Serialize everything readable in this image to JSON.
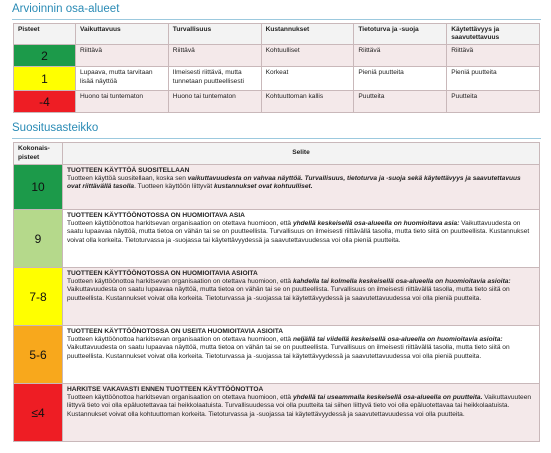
{
  "sections": [
    {
      "heading": "Arvioinnin osa-alueet",
      "table": {
        "header": [
          "Pisteet",
          "Vaikuttavuus",
          "Turvallisuus",
          "Kustannukset",
          "Tietoturva ja -suoja",
          "Käytettävyys ja saavutettavuus"
        ],
        "rows": [
          {
            "score": "2",
            "color": "#1c9a4a",
            "cells": [
              "Riittävä",
              "Riittävä",
              "Kohtuulliset",
              "Riittävä",
              "Riittävä"
            ]
          },
          {
            "score": "1",
            "color": "#ffff00",
            "cells": [
              "Lupaava, mutta tarvitaan lisää näyttöä",
              "Ilmeisesti riittävä, mutta tunnetaan puutteellisesti",
              "Korkeat",
              "Pieniä puutteita",
              "Pieniä puutteita"
            ]
          },
          {
            "score": "-4",
            "color": "#ee1d24",
            "cells": [
              "Huono tai tuntematon",
              "Huono tai tuntematon",
              "Kohtuuttoman kallis",
              "Puutteita",
              "Puutteita"
            ]
          }
        ]
      }
    },
    {
      "heading": "Suositusasteikko",
      "table": {
        "header": [
          "Kokonais-pisteet",
          "Selite"
        ],
        "rows": [
          {
            "score": "10",
            "color": "#1c9a4a",
            "title": "TUOTTEEN KÄYTTÖÄ SUOSITELLAAN",
            "description": [
              {
                "text": "Tuotteen käyttöä suositellaan, koska sen "
              },
              {
                "text": "vaikuttavuudesta on vahvaa näyttöä. Turvallisuus, tietoturva ja -suoja sekä käytettävyys ja saavutettavuus ovat riittävällä tasolla",
                "emphasis": true
              },
              {
                "text": ". Tuotteen käyttöön liittyvät "
              },
              {
                "text": "kustannukset ovat kohtuulliset.",
                "emphasis": true
              }
            ]
          },
          {
            "score": "9",
            "color": "#b5d98b",
            "title": "TUOTTEEN KÄYTTÖÖNOTOSSA ON HUOMIOITAVA ASIA",
            "description": [
              {
                "text": "Tuotteen käyttöönottoa harkitsevan organisaation on otettava huomioon, että "
              },
              {
                "text": "yhdellä keskeisellä osa-alueella on huomioitava asia:",
                "emphasis": true
              },
              {
                "text": " Vaikuttavuudesta on saatu lupaavaa näyttöä, mutta tietoa on vähän tai se on puutteellista. Turvallisuus on ilmeisesti riittävällä tasolla, mutta tieto siitä on puutteellista. Kustannukset voivat olla korkeita. Tietoturvassa ja -suojassa tai käytettävyydessä ja saavutettavuudessa voi olla pieniä puutteita."
              }
            ]
          },
          {
            "score": "7-8",
            "color": "#ffff00",
            "title": "TUOTTEEN KÄYTTÖÖNOTOSSA ON HUOMIOITAVIA ASIOITA",
            "description": [
              {
                "text": "Tuotteen käyttöönottoa harkitsevan organisaation on otettava huomioon, että "
              },
              {
                "text": "kahdella tai kolmella keskeisellä osa-alueella on huomioitavia asioita:",
                "emphasis": true
              },
              {
                "text": " Vaikuttavuudesta on saatu lupaavaa näyttöä, mutta tietoa on vähän tai se on puutteellista. Turvallisuus on ilmeisesti riittävällä tasolla, mutta tieto siitä on puutteellista. Kustannukset voivat olla korkeita. Tietoturvassa ja -suojassa tai käytettävyydessä ja saavutettavuudessa voi olla pieniä puutteita."
              }
            ]
          },
          {
            "score": "5-6",
            "color": "#f8a81c",
            "title": "TUOTTEEN KÄYTTÖÖNOTOSSA ON USEITA HUOMIOITAVIA ASIOITA",
            "description": [
              {
                "text": "Tuotteen käyttöönottoa harkitsevan organisaation on otettava huomioon, että "
              },
              {
                "text": "neljällä tai viidellä keskeisellä osa-alueella on huomioitavia asioita:",
                "emphasis": true
              },
              {
                "text": " Vaikuttavuudesta on saatu lupaavaa näyttöä, mutta tietoa on vähän tai se on puutteellista. Turvallisuus on ilmeisesti riittävällä tasolla, mutta tieto siitä on puutteellista. Kustannukset voivat olla korkeita. Tietoturvassa ja -suojassa tai käytettävyydessä ja saavutettavuudessa voi olla pieniä puutteita."
              }
            ]
          },
          {
            "score": "≤4",
            "color": "#ee1d24",
            "title": "HARKITSE VAKAVASTI ENNEN TUOTTEEN KÄYTTÖÖNOTTOA",
            "description": [
              {
                "text": "Tuotteen käyttöönottoa harkitsevan organisaation on otettava huomioon, että "
              },
              {
                "text": "yhdellä tai useammalla keskeisellä osa-alueella on puutteita.",
                "emphasis": true
              },
              {
                "text": " Vaikuttavuuteen liittyvä tieto voi olla epäluotettavaa tai heikkolaatuista. Turvallisuudessa voi olla puutteita tai siihen liittyvä tieto voi olla epäluotettavaa tai heikkolaatuista. Kustannukset voivat olla kohtuuttoman korkeita. Tietoturvassa ja -suojassa tai käytettävyydessä ja saavutettavuudessa voi olla puutteita."
              }
            ]
          }
        ]
      }
    }
  ]
}
